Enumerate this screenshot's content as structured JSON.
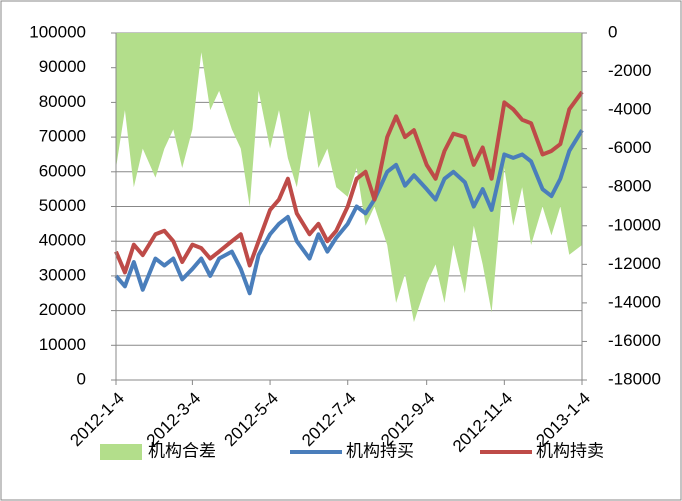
{
  "chart_data": {
    "type": "combo",
    "x": [
      "2012-1-4",
      "2012-1-11",
      "2012-1-18",
      "2012-1-25",
      "2012-2-4",
      "2012-2-11",
      "2012-2-18",
      "2012-2-25",
      "2012-3-4",
      "2012-3-11",
      "2012-3-18",
      "2012-3-25",
      "2012-4-4",
      "2012-4-11",
      "2012-4-18",
      "2012-4-25",
      "2012-5-4",
      "2012-5-11",
      "2012-5-18",
      "2012-5-25",
      "2012-6-4",
      "2012-6-11",
      "2012-6-18",
      "2012-6-25",
      "2012-7-4",
      "2012-7-11",
      "2012-7-18",
      "2012-7-25",
      "2012-8-4",
      "2012-8-11",
      "2012-8-18",
      "2012-8-25",
      "2012-9-4",
      "2012-9-11",
      "2012-9-18",
      "2012-9-25",
      "2012-10-4",
      "2012-10-11",
      "2012-10-18",
      "2012-10-25",
      "2012-11-4",
      "2012-11-11",
      "2012-11-18",
      "2012-11-25",
      "2012-12-4",
      "2012-12-11",
      "2012-12-18",
      "2012-12-25",
      "2013-1-4"
    ],
    "series": [
      {
        "name": "机构合差",
        "color": "#b3de8b",
        "kind": "area",
        "axis": "y2",
        "values": [
          -7000,
          -4000,
          -8000,
          -6000,
          -7500,
          -6000,
          -5000,
          -7000,
          -5000,
          -1000,
          -4000,
          -3000,
          -5000,
          -6000,
          -9000,
          -3000,
          -6000,
          -4000,
          -6500,
          -8000,
          -4000,
          -7000,
          -6000,
          -8000,
          -8500,
          -7000,
          -10000,
          -9000,
          -11000,
          -14000,
          -12500,
          -15000,
          -13000,
          -12000,
          -14000,
          -11000,
          -13500,
          -10000,
          -12000,
          -14500,
          -7000,
          -10000,
          -8000,
          -11000,
          -9000,
          -10500,
          -9000,
          -11500,
          -11000
        ]
      },
      {
        "name": "机构持买",
        "color": "#4a7ebb",
        "kind": "line",
        "values": [
          30000,
          27000,
          34000,
          26000,
          35000,
          33000,
          35000,
          29000,
          32000,
          35000,
          30000,
          35000,
          37000,
          32000,
          25000,
          36000,
          42000,
          45000,
          47000,
          40000,
          35000,
          42000,
          37000,
          41000,
          45000,
          50000,
          48000,
          52000,
          60000,
          62000,
          56000,
          59000,
          55000,
          52000,
          58000,
          60000,
          57000,
          50000,
          55000,
          49000,
          65000,
          64000,
          65000,
          63000,
          55000,
          53000,
          58000,
          66000,
          72000
        ]
      },
      {
        "name": "机构持卖",
        "color": "#be4b48",
        "kind": "line",
        "values": [
          37000,
          31000,
          39000,
          36000,
          42000,
          43000,
          40000,
          34000,
          39000,
          38000,
          35000,
          37000,
          40000,
          42000,
          33000,
          40000,
          49000,
          52000,
          58000,
          48000,
          42000,
          45000,
          40000,
          43000,
          50000,
          58000,
          60000,
          52000,
          70000,
          76000,
          70000,
          72000,
          62000,
          58000,
          66000,
          71000,
          70000,
          62000,
          67000,
          58000,
          80000,
          78000,
          75000,
          74000,
          65000,
          66000,
          68000,
          78000,
          83000
        ]
      }
    ],
    "xlim": [
      "2012-1-4",
      "2013-1-4"
    ],
    "xticks": [
      "2012-1-4",
      "2012-3-4",
      "2012-5-4",
      "2012-7-4",
      "2012-9-4",
      "2012-11-4",
      "2013-1-4"
    ],
    "ylim": [
      0,
      100000
    ],
    "yticks": [
      0,
      10000,
      20000,
      30000,
      40000,
      50000,
      60000,
      70000,
      80000,
      90000,
      100000
    ],
    "y2lim": [
      -18000,
      0
    ],
    "y2ticks": [
      -18000,
      -16000,
      -14000,
      -12000,
      -10000,
      -8000,
      -6000,
      -4000,
      -2000,
      0
    ],
    "grid": true,
    "legend": "bottom"
  }
}
